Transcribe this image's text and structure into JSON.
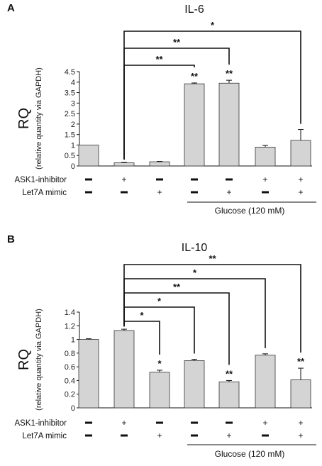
{
  "chart_data": [
    {
      "type": "bar",
      "panel": "A",
      "title": "IL-6",
      "ylabel": "RQ",
      "ylabel_sub": "(relative quantity via GAPDH)",
      "ylim": [
        0,
        4.5
      ],
      "yticks": [
        "0",
        "0.5",
        "1",
        "1.5",
        "2",
        "2.5",
        "3",
        "3.5",
        "4",
        "4.5"
      ],
      "values": [
        1.0,
        0.15,
        0.2,
        3.92,
        3.95,
        0.9,
        1.22
      ],
      "errors": [
        0,
        0.02,
        0.02,
        0.04,
        0.14,
        0.08,
        0.52
      ],
      "bar_stars": [
        "",
        "",
        "",
        "**",
        "**",
        "",
        ""
      ],
      "comparisons": [
        {
          "from": 1,
          "to": 3,
          "label": "**"
        },
        {
          "from": 1,
          "to": 4,
          "label": "**"
        },
        {
          "from": 1,
          "to": 6,
          "label": "*"
        }
      ],
      "rows": [
        {
          "label": "ASK1-inhibitor",
          "signs": [
            "−",
            "+",
            "−",
            "−",
            "−",
            "+",
            "+"
          ]
        },
        {
          "label": "Let7A mimic",
          "signs": [
            "−",
            "−",
            "+",
            "−",
            "+",
            "−",
            "+"
          ]
        }
      ],
      "group_label": "Glucose (120 mM)",
      "group_from": 3,
      "group_to": 6
    },
    {
      "type": "bar",
      "panel": "B",
      "title": "IL-10",
      "ylabel": "RQ",
      "ylabel_sub": "(relative quantity via GAPDH)",
      "ylim": [
        0,
        1.4
      ],
      "yticks": [
        "0",
        "0.2",
        "0.4",
        "0.6",
        "0.8",
        "1",
        "1.2",
        "1.4"
      ],
      "values": [
        1.0,
        1.13,
        0.52,
        0.69,
        0.38,
        0.77,
        0.41
      ],
      "errors": [
        0.01,
        0.02,
        0.03,
        0.02,
        0.02,
        0.02,
        0.17
      ],
      "bar_stars": [
        "",
        "",
        "*",
        "",
        "**",
        "",
        "**"
      ],
      "comparisons": [
        {
          "from": 1,
          "to": 2,
          "label": "*"
        },
        {
          "from": 1,
          "to": 3,
          "label": "*"
        },
        {
          "from": 1,
          "to": 4,
          "label": "**"
        },
        {
          "from": 1,
          "to": 5,
          "label": "*"
        },
        {
          "from": 1,
          "to": 6,
          "label": "**"
        }
      ],
      "rows": [
        {
          "label": "ASK1-inhibitor",
          "signs": [
            "−",
            "+",
            "−",
            "−",
            "−",
            "+",
            "+"
          ]
        },
        {
          "label": "Let7A mimic",
          "signs": [
            "−",
            "−",
            "+",
            "−",
            "+",
            "−",
            "+"
          ]
        }
      ],
      "group_label": "Glucose (120 mM)",
      "group_from": 3,
      "group_to": 6
    }
  ],
  "colors": {
    "bar_fill": "#d4d4d4",
    "bar_stroke": "#333333",
    "line": "#111111"
  }
}
